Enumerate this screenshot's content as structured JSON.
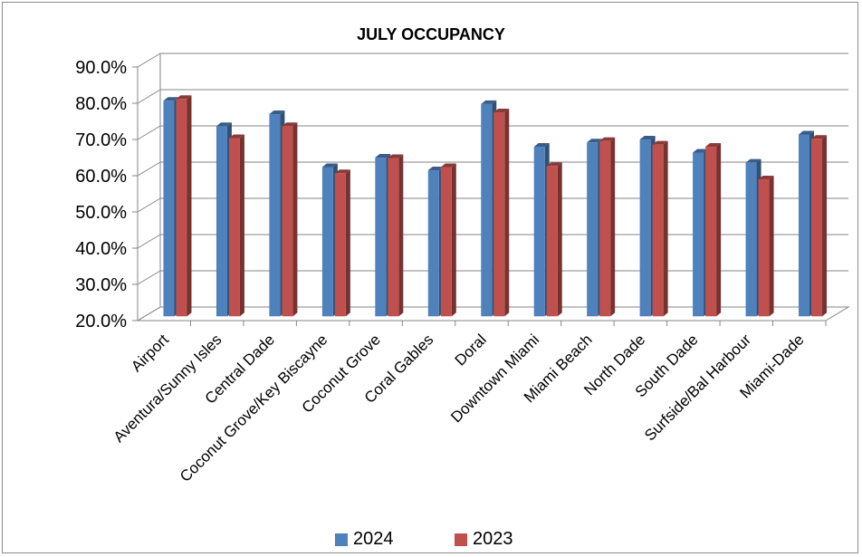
{
  "chart_data": {
    "type": "bar",
    "title": "JULY OCCUPANCY",
    "categories": [
      "Airport",
      "Aventura/Sunny Isles",
      "Central Dade",
      "Coconut Grove/Key Biscayne",
      "Coconut Grove",
      "Coral Gables",
      "Doral",
      "Downtown Miami",
      "Miami Beach",
      "North Dade",
      "South Dade",
      "Surfside/Bal Harbour",
      "Miami-Dade"
    ],
    "series": [
      {
        "name": "2024",
        "color": "#4f81bd",
        "values": [
          79.5,
          72.5,
          75.8,
          61.2,
          63.8,
          60.3,
          78.6,
          66.8,
          68.0,
          68.8,
          65.2,
          62.4,
          70.2
        ]
      },
      {
        "name": "2023",
        "color": "#c0504d",
        "values": [
          80.0,
          69.2,
          72.5,
          59.5,
          63.7,
          61.2,
          76.3,
          61.5,
          68.4,
          67.4,
          66.8,
          57.8,
          69.0
        ]
      }
    ],
    "ylim": [
      20,
      90
    ],
    "yticks": [
      "20.0%",
      "30.0%",
      "40.0%",
      "50.0%",
      "60.0%",
      "70.0%",
      "80.0%",
      "90.0%"
    ],
    "grid": true,
    "legend": "bottom",
    "xlabel": "",
    "ylabel": ""
  }
}
